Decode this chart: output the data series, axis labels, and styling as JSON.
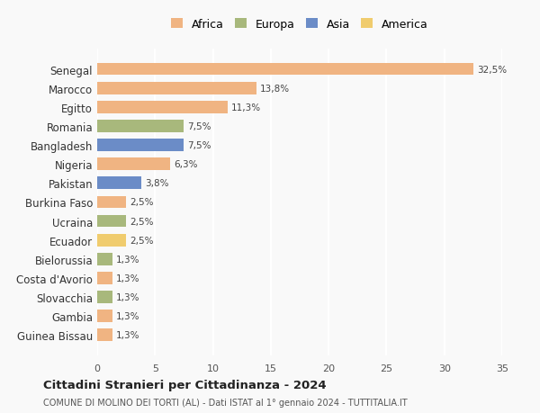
{
  "countries": [
    "Guinea Bissau",
    "Gambia",
    "Slovacchia",
    "Costa d'Avorio",
    "Bielorussia",
    "Ecuador",
    "Ucraina",
    "Burkina Faso",
    "Pakistan",
    "Nigeria",
    "Bangladesh",
    "Romania",
    "Egitto",
    "Marocco",
    "Senegal"
  ],
  "values": [
    1.3,
    1.3,
    1.3,
    1.3,
    1.3,
    2.5,
    2.5,
    2.5,
    3.8,
    6.3,
    7.5,
    7.5,
    11.3,
    13.8,
    32.5
  ],
  "labels": [
    "1,3%",
    "1,3%",
    "1,3%",
    "1,3%",
    "1,3%",
    "2,5%",
    "2,5%",
    "2,5%",
    "3,8%",
    "6,3%",
    "7,5%",
    "7,5%",
    "11,3%",
    "13,8%",
    "32,5%"
  ],
  "continents": [
    "Africa",
    "Africa",
    "Europa",
    "Africa",
    "Europa",
    "America",
    "Europa",
    "Africa",
    "Asia",
    "Africa",
    "Asia",
    "Europa",
    "Africa",
    "Africa",
    "Africa"
  ],
  "continent_colors": {
    "Africa": "#F0B482",
    "Europa": "#A8B87C",
    "Asia": "#6B8CC7",
    "America": "#F0CC6E"
  },
  "legend_order": [
    "Africa",
    "Europa",
    "Asia",
    "America"
  ],
  "title": "Cittadini Stranieri per Cittadinanza - 2024",
  "subtitle": "COMUNE DI MOLINO DEI TORTI (AL) - Dati ISTAT al 1° gennaio 2024 - TUTTITALIA.IT",
  "xlim": [
    0,
    35
  ],
  "xticks": [
    0,
    5,
    10,
    15,
    20,
    25,
    30,
    35
  ],
  "background_color": "#f9f9f9",
  "grid_color": "#ffffff",
  "bar_height": 0.65
}
